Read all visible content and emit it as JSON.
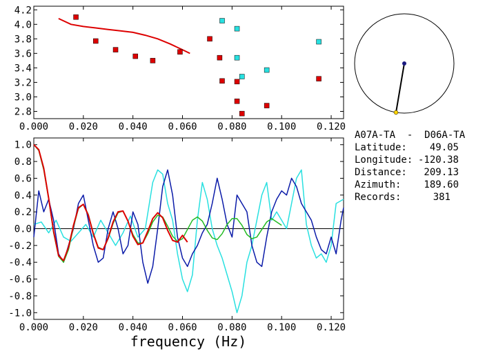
{
  "info": {
    "station_pair": "A07A-TA  -  D06A-TA",
    "latitude_label": "Latitude:",
    "latitude": "49.05",
    "longitude_label": "Longitude:",
    "longitude": "-120.38",
    "distance_label": "Distance:",
    "distance": "209.13",
    "azimuth_label": "Azimuth:",
    "azimuth": "189.60",
    "records_label": "Records:",
    "records": "381"
  },
  "colors": {
    "red": "#dd0000",
    "cyan": "#28e0e0",
    "blue": "#0a1aa8",
    "green": "#22bb22",
    "black": "#000000"
  },
  "chart_data": [
    {
      "type": "scatter",
      "xlim": [
        0.0,
        0.125
      ],
      "ylim": [
        2.7,
        4.25
      ],
      "xticks": [
        "0.000",
        "0.020",
        "0.040",
        "0.060",
        "0.080",
        "0.100",
        "0.120"
      ],
      "yticks": [
        "2.8",
        "3.0",
        "3.2",
        "3.4",
        "3.6",
        "3.8",
        "4.0",
        "4.2"
      ],
      "xlabel": "",
      "ylabel": "",
      "series": [
        {
          "marker": "square",
          "color": "red",
          "points": [
            [
              0.017,
              4.1
            ],
            [
              0.025,
              3.77
            ],
            [
              0.033,
              3.65
            ],
            [
              0.041,
              3.56
            ],
            [
              0.048,
              3.5
            ],
            [
              0.059,
              3.62
            ],
            [
              0.071,
              3.8
            ],
            [
              0.075,
              3.54
            ],
            [
              0.076,
              3.22
            ],
            [
              0.082,
              3.21
            ],
            [
              0.082,
              2.94
            ],
            [
              0.084,
              2.77
            ],
            [
              0.094,
              2.88
            ],
            [
              0.115,
              3.25
            ]
          ]
        },
        {
          "marker": "square",
          "color": "cyan",
          "points": [
            [
              0.076,
              4.05
            ],
            [
              0.082,
              3.94
            ],
            [
              0.082,
              3.54
            ],
            [
              0.084,
              3.28
            ],
            [
              0.094,
              3.37
            ],
            [
              0.115,
              3.76
            ]
          ]
        },
        {
          "type": "line",
          "color": "red",
          "points": [
            [
              0.01,
              4.08
            ],
            [
              0.015,
              4.0
            ],
            [
              0.02,
              3.97
            ],
            [
              0.025,
              3.95
            ],
            [
              0.03,
              3.93
            ],
            [
              0.035,
              3.91
            ],
            [
              0.04,
              3.89
            ],
            [
              0.045,
              3.85
            ],
            [
              0.05,
              3.8
            ],
            [
              0.055,
              3.73
            ],
            [
              0.06,
              3.65
            ],
            [
              0.063,
              3.6
            ]
          ]
        }
      ]
    },
    {
      "type": "line",
      "xlim": [
        0.0,
        0.125
      ],
      "ylim": [
        -1.08,
        1.08
      ],
      "xticks": [
        "0.000",
        "0.020",
        "0.040",
        "0.060",
        "0.080",
        "0.100",
        "0.120"
      ],
      "yticks": [
        "-1.0",
        "-0.8",
        "-0.6",
        "-0.4",
        "-0.2",
        "0.0",
        "0.2",
        "0.4",
        "0.6",
        "0.8",
        "1.0"
      ],
      "xlabel": "frequency (Hz)",
      "ylabel": "",
      "zero_line": true,
      "series": [
        {
          "color": "cyan",
          "x": [
            0.0,
            0.003,
            0.006,
            0.009,
            0.012,
            0.015,
            0.018,
            0.021,
            0.024,
            0.027,
            0.03,
            0.033,
            0.036,
            0.039,
            0.042,
            0.045,
            0.048,
            0.05,
            0.052,
            0.054,
            0.056,
            0.058,
            0.06,
            0.062,
            0.064,
            0.066,
            0.068,
            0.07,
            0.072,
            0.074,
            0.076,
            0.078,
            0.08,
            0.082,
            0.084,
            0.086,
            0.088,
            0.09,
            0.092,
            0.094,
            0.096,
            0.098,
            0.1,
            0.102,
            0.104,
            0.106,
            0.108,
            0.11,
            0.112,
            0.114,
            0.116,
            0.118,
            0.12,
            0.122,
            0.125
          ],
          "y": [
            0.05,
            0.08,
            -0.05,
            0.1,
            -0.1,
            -0.15,
            -0.05,
            0.05,
            -0.1,
            0.1,
            -0.05,
            -0.2,
            -0.05,
            0.15,
            -0.1,
            0.0,
            0.55,
            0.7,
            0.65,
            0.3,
            0.1,
            -0.3,
            -0.6,
            -0.75,
            -0.55,
            0.1,
            0.55,
            0.35,
            0.0,
            -0.2,
            -0.35,
            -0.55,
            -0.75,
            -1.0,
            -0.8,
            -0.4,
            -0.2,
            0.1,
            0.4,
            0.55,
            0.1,
            0.2,
            0.1,
            0.0,
            0.3,
            0.6,
            0.7,
            0.05,
            -0.2,
            -0.35,
            -0.3,
            -0.4,
            -0.2,
            0.3,
            0.35
          ]
        },
        {
          "color": "blue",
          "x": [
            0.0,
            0.002,
            0.004,
            0.006,
            0.008,
            0.01,
            0.012,
            0.014,
            0.016,
            0.018,
            0.02,
            0.022,
            0.024,
            0.026,
            0.028,
            0.03,
            0.032,
            0.034,
            0.036,
            0.038,
            0.04,
            0.042,
            0.044,
            0.046,
            0.048,
            0.05,
            0.052,
            0.054,
            0.056,
            0.058,
            0.06,
            0.062,
            0.064,
            0.066,
            0.068,
            0.07,
            0.072,
            0.074,
            0.076,
            0.078,
            0.08,
            0.082,
            0.084,
            0.086,
            0.088,
            0.09,
            0.092,
            0.094,
            0.096,
            0.098,
            0.1,
            0.102,
            0.104,
            0.106,
            0.108,
            0.11,
            0.112,
            0.114,
            0.116,
            0.118,
            0.12,
            0.122,
            0.124,
            0.125
          ],
          "y": [
            -0.1,
            0.45,
            0.2,
            0.35,
            0.1,
            -0.3,
            -0.4,
            -0.2,
            0.0,
            0.3,
            0.4,
            0.1,
            -0.2,
            -0.4,
            -0.35,
            0.0,
            0.2,
            0.0,
            -0.3,
            -0.2,
            0.2,
            0.05,
            -0.4,
            -0.65,
            -0.45,
            0.0,
            0.5,
            0.7,
            0.4,
            -0.1,
            -0.35,
            -0.45,
            -0.3,
            -0.2,
            -0.05,
            0.05,
            0.3,
            0.6,
            0.35,
            0.05,
            -0.1,
            0.4,
            0.3,
            0.2,
            -0.2,
            -0.4,
            -0.45,
            -0.1,
            0.2,
            0.35,
            0.45,
            0.4,
            0.6,
            0.5,
            0.3,
            0.2,
            0.1,
            -0.1,
            -0.25,
            -0.3,
            -0.1,
            -0.3,
            0.1,
            0.25
          ]
        },
        {
          "color": "green",
          "x": [
            0.0,
            0.002,
            0.004,
            0.006,
            0.008,
            0.01,
            0.012,
            0.014,
            0.016,
            0.018,
            0.02,
            0.022,
            0.024,
            0.026,
            0.028,
            0.03,
            0.032,
            0.034,
            0.036,
            0.038,
            0.04,
            0.042,
            0.044,
            0.046,
            0.048,
            0.05,
            0.052,
            0.054,
            0.056,
            0.058,
            0.06,
            0.062,
            0.064,
            0.066,
            0.068,
            0.07,
            0.072,
            0.074,
            0.076,
            0.078,
            0.08,
            0.082,
            0.084,
            0.086,
            0.088,
            0.09,
            0.092,
            0.094,
            0.096,
            0.098,
            0.1
          ],
          "y": [
            1.0,
            0.93,
            0.7,
            0.35,
            -0.05,
            -0.33,
            -0.4,
            -0.25,
            0.02,
            0.24,
            0.29,
            0.17,
            -0.05,
            -0.22,
            -0.25,
            -0.12,
            0.06,
            0.19,
            0.21,
            0.09,
            -0.07,
            -0.17,
            -0.17,
            -0.06,
            0.08,
            0.16,
            0.14,
            0.03,
            -0.09,
            -0.15,
            -0.12,
            -0.01,
            0.1,
            0.14,
            0.09,
            -0.02,
            -0.11,
            -0.13,
            -0.06,
            0.05,
            0.12,
            0.12,
            0.04,
            -0.07,
            -0.12,
            -0.1,
            -0.01,
            0.08,
            0.12,
            0.08,
            0.04
          ]
        },
        {
          "color": "red",
          "x": [
            0.0,
            0.002,
            0.004,
            0.006,
            0.008,
            0.01,
            0.012,
            0.014,
            0.016,
            0.018,
            0.02,
            0.022,
            0.024,
            0.026,
            0.028,
            0.03,
            0.032,
            0.034,
            0.036,
            0.038,
            0.04,
            0.042,
            0.044,
            0.046,
            0.048,
            0.05,
            0.052,
            0.054,
            0.056,
            0.058,
            0.06,
            0.062
          ],
          "y": [
            1.0,
            0.94,
            0.72,
            0.36,
            -0.03,
            -0.32,
            -0.38,
            -0.22,
            0.04,
            0.25,
            0.29,
            0.16,
            -0.06,
            -0.23,
            -0.25,
            -0.11,
            0.08,
            0.2,
            0.21,
            0.09,
            -0.09,
            -0.19,
            -0.17,
            -0.03,
            0.12,
            0.19,
            0.13,
            -0.02,
            -0.14,
            -0.16,
            -0.08,
            -0.16
          ]
        }
      ]
    }
  ],
  "azimuth_diagram": {
    "azimuth_deg": 189.6,
    "distance_fraction": 0.6
  }
}
